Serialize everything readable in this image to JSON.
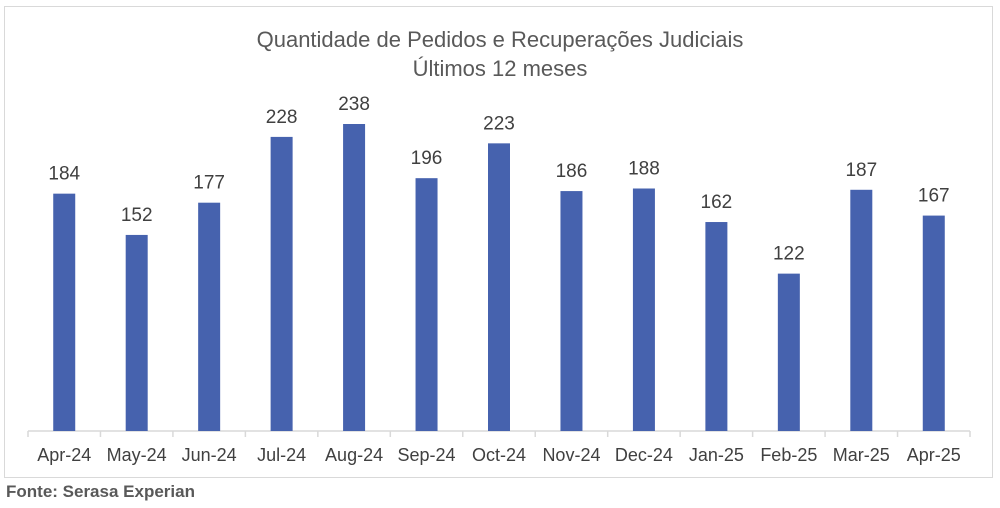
{
  "chart_data": {
    "type": "bar",
    "title": "Quantidade de Pedidos e Recuperações Judiciais",
    "subtitle": "Últimos 12 meses",
    "categories": [
      "Apr-24",
      "May-24",
      "Jun-24",
      "Jul-24",
      "Aug-24",
      "Sep-24",
      "Oct-24",
      "Nov-24",
      "Dec-24",
      "Jan-25",
      "Feb-25",
      "Mar-25",
      "Apr-25"
    ],
    "values": [
      184,
      152,
      177,
      228,
      238,
      196,
      223,
      186,
      188,
      162,
      122,
      187,
      167
    ],
    "xlabel": "",
    "ylabel": "",
    "ylim": [
      0,
      238
    ],
    "grid": false,
    "data_labels": true,
    "bar_color": "#4662AE"
  },
  "source": "Fonte: Serasa Experian"
}
